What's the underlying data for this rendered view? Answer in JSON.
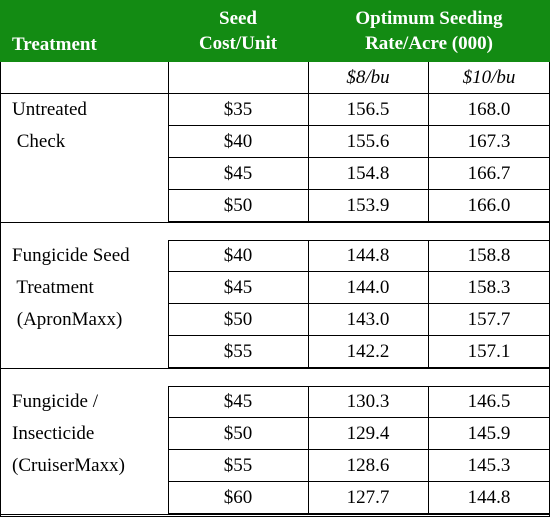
{
  "header": {
    "treatment": "Treatment",
    "seed_cost_line1": "Seed",
    "seed_cost_line2": "Cost/Unit",
    "rate_line1": "Optimum Seeding",
    "rate_line2": "Rate/Acre (000)"
  },
  "subheader": {
    "col1": "$8/bu",
    "col2": "$10/bu"
  },
  "groups": [
    {
      "treatment_lines": [
        "Untreated",
        " Check"
      ],
      "rows": [
        {
          "cost": "$35",
          "rate8": "156.5",
          "rate10": "168.0"
        },
        {
          "cost": "$40",
          "rate8": "155.6",
          "rate10": "167.3"
        },
        {
          "cost": "$45",
          "rate8": "154.8",
          "rate10": "166.7"
        },
        {
          "cost": "$50",
          "rate8": "153.9",
          "rate10": "166.0"
        }
      ]
    },
    {
      "treatment_lines": [
        "Fungicide Seed",
        " Treatment",
        " (ApronMaxx)"
      ],
      "rows": [
        {
          "cost": "$40",
          "rate8": "144.8",
          "rate10": "158.8"
        },
        {
          "cost": "$45",
          "rate8": "144.0",
          "rate10": "158.3"
        },
        {
          "cost": "$50",
          "rate8": "143.0",
          "rate10": "157.7"
        },
        {
          "cost": "$55",
          "rate8": "142.2",
          "rate10": "157.1"
        }
      ]
    },
    {
      "treatment_lines": [
        "Fungicide /",
        "Insecticide",
        "(CruiserMaxx)"
      ],
      "rows": [
        {
          "cost": "$45",
          "rate8": "130.3",
          "rate10": "146.5"
        },
        {
          "cost": "$50",
          "rate8": "129.4",
          "rate10": "145.9"
        },
        {
          "cost": "$55",
          "rate8": "128.6",
          "rate10": "145.3"
        },
        {
          "cost": "$60",
          "rate8": "127.7",
          "rate10": "144.8"
        }
      ]
    }
  ]
}
